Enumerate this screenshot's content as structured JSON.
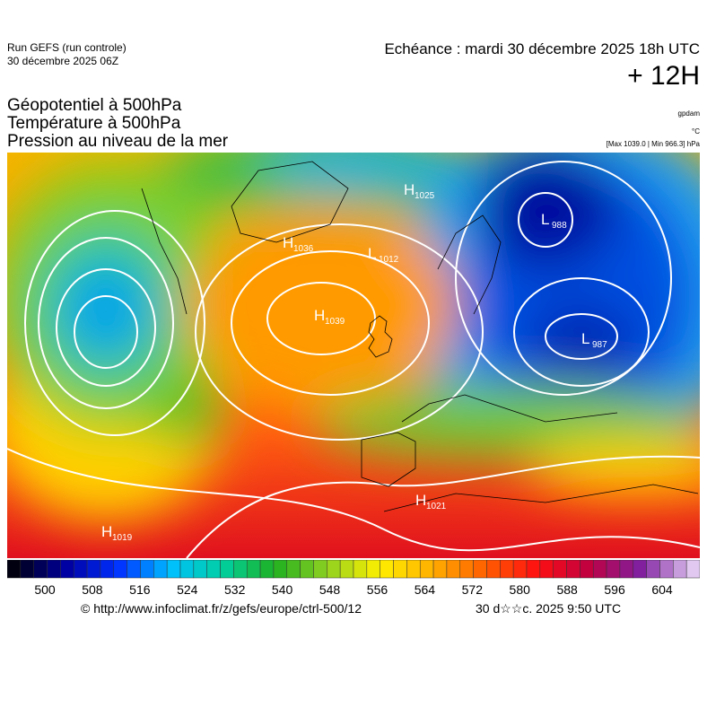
{
  "header": {
    "run": "Run GEFS (run controle)",
    "run_date": "30 décembre 2025 06Z",
    "valid_time": "Echéance : mardi 30 décembre 2025 18h UTC",
    "lead": "+ 12H",
    "fields": [
      "Géopotentiel à 500hPa",
      "Température à 500hPa",
      "Pression au niveau de la mer"
    ],
    "units": [
      "gpdam",
      "°C",
      "[Max 1039.0 | Min 966.3] hPa"
    ]
  },
  "map": {
    "centers": [
      {
        "letter": "H",
        "value": "1039"
      },
      {
        "letter": "L",
        "value": "987"
      },
      {
        "letter": "L",
        "value": "988"
      },
      {
        "letter": "H",
        "value": "1025"
      },
      {
        "letter": "H",
        "value": "1021"
      },
      {
        "letter": "H",
        "value": "1019"
      },
      {
        "letter": "L",
        "value": "1012"
      },
      {
        "letter": "H",
        "value": "1036"
      }
    ]
  },
  "colorbar": {
    "labels": [
      "500",
      "508",
      "516",
      "524",
      "532",
      "540",
      "548",
      "556",
      "564",
      "572",
      "580",
      "588",
      "596",
      "604"
    ]
  },
  "footer": {
    "source": "© http://www.infoclimat.fr/z/gefs/europe/ctrl-500/12",
    "generated": "30 d☆☆c. 2025  9:50 UTC"
  }
}
